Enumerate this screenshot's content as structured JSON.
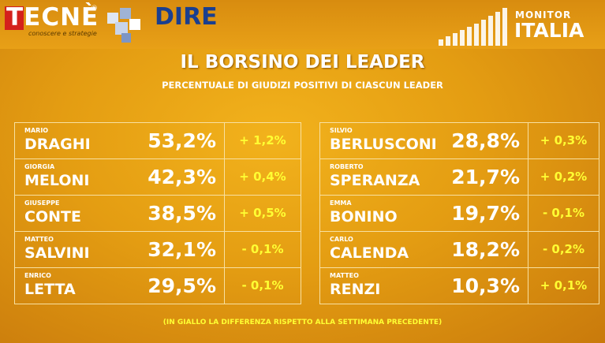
{
  "header": {
    "logo_left": {
      "name": "TECNÈ",
      "mark": "®",
      "tagline": "conoscere e strategie"
    },
    "logo_middle": "DIRE",
    "logo_right": {
      "line1": "MONITOR",
      "line2": "ITALIA"
    }
  },
  "title": "IL BORSINO DEI LEADER",
  "subtitle": "PERCENTUALE DI GIUDIZI POSITIVI DI CIASCUN LEADER",
  "tables": [
    {
      "rows": [
        {
          "first": "MARIO",
          "last": "DRAGHI",
          "value": "53,2%",
          "change": "+ 1,2%"
        },
        {
          "first": "GIORGIA",
          "last": "MELONI",
          "value": "42,3%",
          "change": "+ 0,4%"
        },
        {
          "first": "GIUSEPPE",
          "last": "CONTE",
          "value": "38,5%",
          "change": "+ 0,5%"
        },
        {
          "first": "MATTEO",
          "last": "SALVINI",
          "value": "32,1%",
          "change": "- 0,1%"
        },
        {
          "first": "ENRICO",
          "last": "LETTA",
          "value": "29,5%",
          "change": "- 0,1%"
        }
      ]
    },
    {
      "rows": [
        {
          "first": "SILVIO",
          "last": "BERLUSCONI",
          "value": "28,8%",
          "change": "+ 0,3%"
        },
        {
          "first": "ROBERTO",
          "last": "SPERANZA",
          "value": "21,7%",
          "change": "+ 0,2%"
        },
        {
          "first": "EMMA",
          "last": "BONINO",
          "value": "19,7%",
          "change": "- 0,1%"
        },
        {
          "first": "CARLO",
          "last": "CALENDA",
          "value": "18,2%",
          "change": "- 0,2%"
        },
        {
          "first": "MATTEO",
          "last": "RENZI",
          "value": "10,3%",
          "change": "+ 0,1%"
        }
      ]
    }
  ],
  "footnote": "(IN GIALLO LA DIFFERENZA RISPETTO ALLA SETTIMANA PRECEDENTE)"
}
